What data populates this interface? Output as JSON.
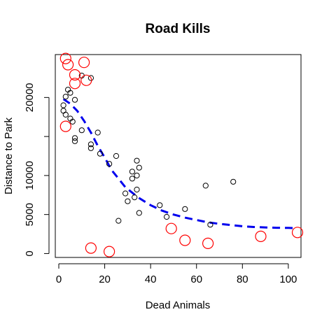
{
  "chart_data": {
    "type": "scatter",
    "title": "Road Kills",
    "xlabel": "Dead Animals",
    "ylabel": "Distance to Park",
    "xlim": [
      0,
      104
    ],
    "ylim": [
      -500,
      25500
    ],
    "x_ticks": [
      0,
      20,
      40,
      60,
      80,
      100
    ],
    "y_ticks": [
      0,
      5000,
      10000,
      15000,
      20000
    ],
    "y_tick_labels": [
      "0",
      "5000",
      "10000",
      "",
      "20000"
    ],
    "grid": false,
    "series": [
      {
        "marker": "circle",
        "color": "#000000",
        "size": "small",
        "points": [
          [
            2,
            19000
          ],
          [
            2,
            18300
          ],
          [
            3,
            17800
          ],
          [
            3,
            20100
          ],
          [
            4,
            21000
          ],
          [
            5,
            20600
          ],
          [
            5,
            17300
          ],
          [
            6,
            16900
          ],
          [
            7,
            19700
          ],
          [
            7,
            14800
          ],
          [
            7,
            14400
          ],
          [
            10,
            22800
          ],
          [
            10,
            15800
          ],
          [
            14,
            22500
          ],
          [
            14,
            14000
          ],
          [
            14,
            13500
          ],
          [
            17,
            15500
          ],
          [
            18,
            12800
          ],
          [
            22,
            11500
          ],
          [
            25,
            12500
          ],
          [
            26,
            4200
          ],
          [
            29,
            7700
          ],
          [
            30,
            6700
          ],
          [
            32,
            10500
          ],
          [
            32,
            9600
          ],
          [
            33,
            7200
          ],
          [
            34,
            10000
          ],
          [
            34,
            11900
          ],
          [
            34,
            8200
          ],
          [
            35,
            11000
          ],
          [
            35,
            5200
          ],
          [
            44,
            6200
          ],
          [
            47,
            4700
          ],
          [
            55,
            5700
          ],
          [
            64,
            8700
          ],
          [
            66,
            3700
          ],
          [
            76,
            9200
          ]
        ]
      },
      {
        "marker": "circle",
        "color": "#ff0000",
        "size": "large",
        "points": [
          [
            3,
            25000
          ],
          [
            4,
            24200
          ],
          [
            3,
            16300
          ],
          [
            7,
            22900
          ],
          [
            7,
            21800
          ],
          [
            11,
            24500
          ],
          [
            12,
            22200
          ],
          [
            14,
            700
          ],
          [
            22,
            250
          ],
          [
            49,
            3200
          ],
          [
            55,
            1700
          ],
          [
            65,
            1300
          ],
          [
            88,
            2200
          ],
          [
            104,
            2700
          ]
        ]
      }
    ],
    "fit_line": {
      "style": "dashed",
      "color": "#0000ee",
      "x": [
        2,
        5,
        8,
        11,
        14,
        17,
        20,
        23,
        26,
        29,
        32,
        35,
        40,
        45,
        50,
        55,
        60,
        65,
        70,
        75,
        80,
        85,
        90,
        95,
        100,
        104
      ],
      "y": [
        19800,
        19200,
        18300,
        17000,
        15500,
        13800,
        12300,
        10700,
        9600,
        8500,
        7800,
        7100,
        6200,
        5500,
        5000,
        4600,
        4300,
        4000,
        3800,
        3650,
        3500,
        3400,
        3350,
        3300,
        3280,
        3250
      ]
    }
  }
}
